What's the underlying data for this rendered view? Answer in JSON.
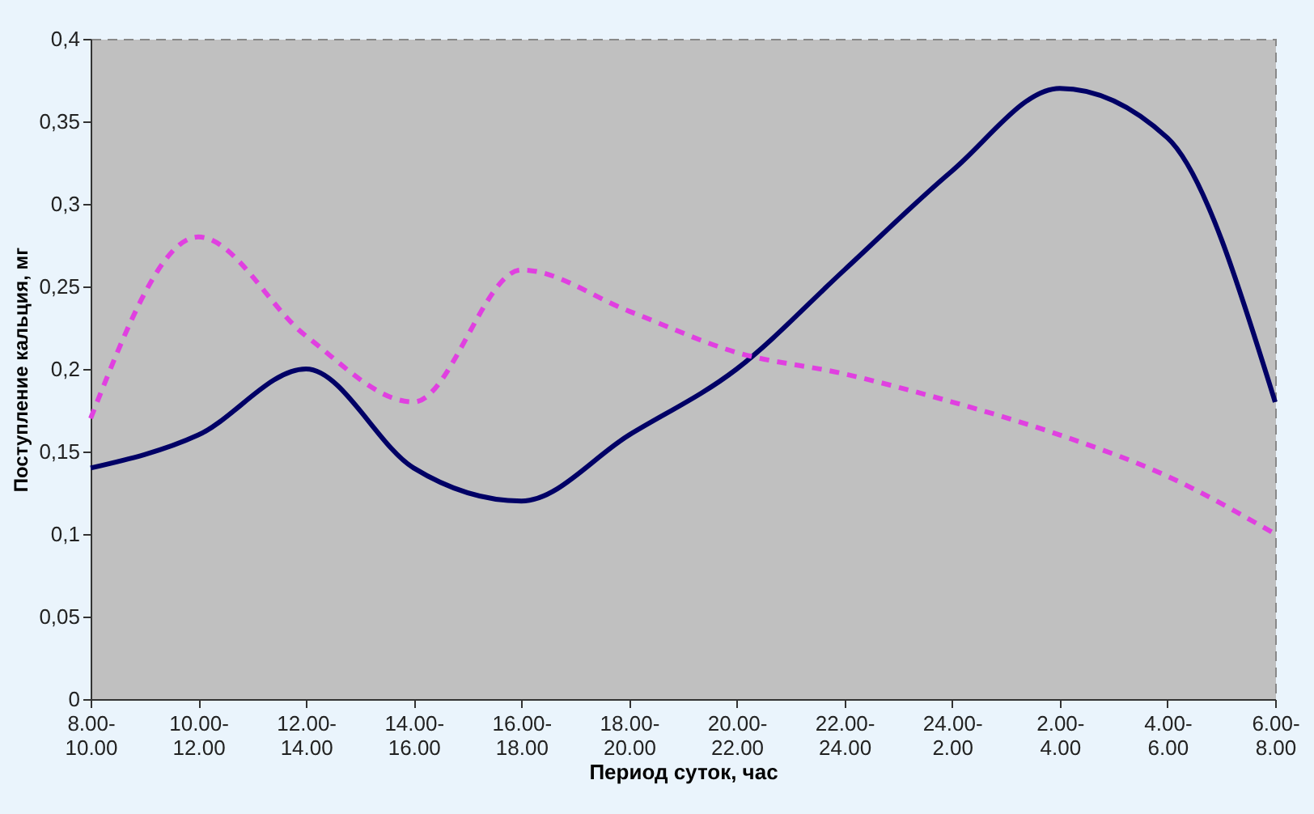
{
  "chart_data": {
    "type": "line",
    "xlabel": "Период суток, час",
    "ylabel": "Поступление кальция, мг",
    "categories": [
      "8.00-10.00",
      "10.00-12.00",
      "12.00-14.00",
      "14.00-16.00",
      "16.00-18.00",
      "18.00-20.00",
      "20.00-22.00",
      "22.00-24.00",
      "24.00-2.00",
      "2.00-4.00",
      "4.00-6.00",
      "6.00-8.00"
    ],
    "series": [
      {
        "color": "#000066",
        "line_style": "solid",
        "values": [
          0.14,
          0.16,
          0.2,
          0.14,
          0.12,
          0.16,
          0.2,
          0.26,
          0.32,
          0.37,
          0.34,
          0.18
        ]
      },
      {
        "color": "#e040e0",
        "line_style": "dashed",
        "values": [
          0.17,
          0.28,
          0.22,
          0.18,
          0.26,
          0.235,
          0.21,
          0.197,
          0.18,
          0.16,
          0.135,
          0.1
        ]
      }
    ],
    "ylim": [
      0,
      0.4
    ],
    "yticks": [
      0,
      {
        "value": 0.05,
        "label": "0,05"
      },
      {
        "value": 0.1,
        "label": "0,1"
      },
      {
        "value": 0.15,
        "label": "0,15"
      },
      {
        "value": 0.2,
        "label": "0,2"
      },
      {
        "value": 0.25,
        "label": "0,25"
      },
      {
        "value": 0.3,
        "label": "0,3"
      },
      {
        "value": 0.35,
        "label": "0,35"
      },
      {
        "value": 0.4,
        "label": "0,4"
      }
    ],
    "marker": "none"
  }
}
